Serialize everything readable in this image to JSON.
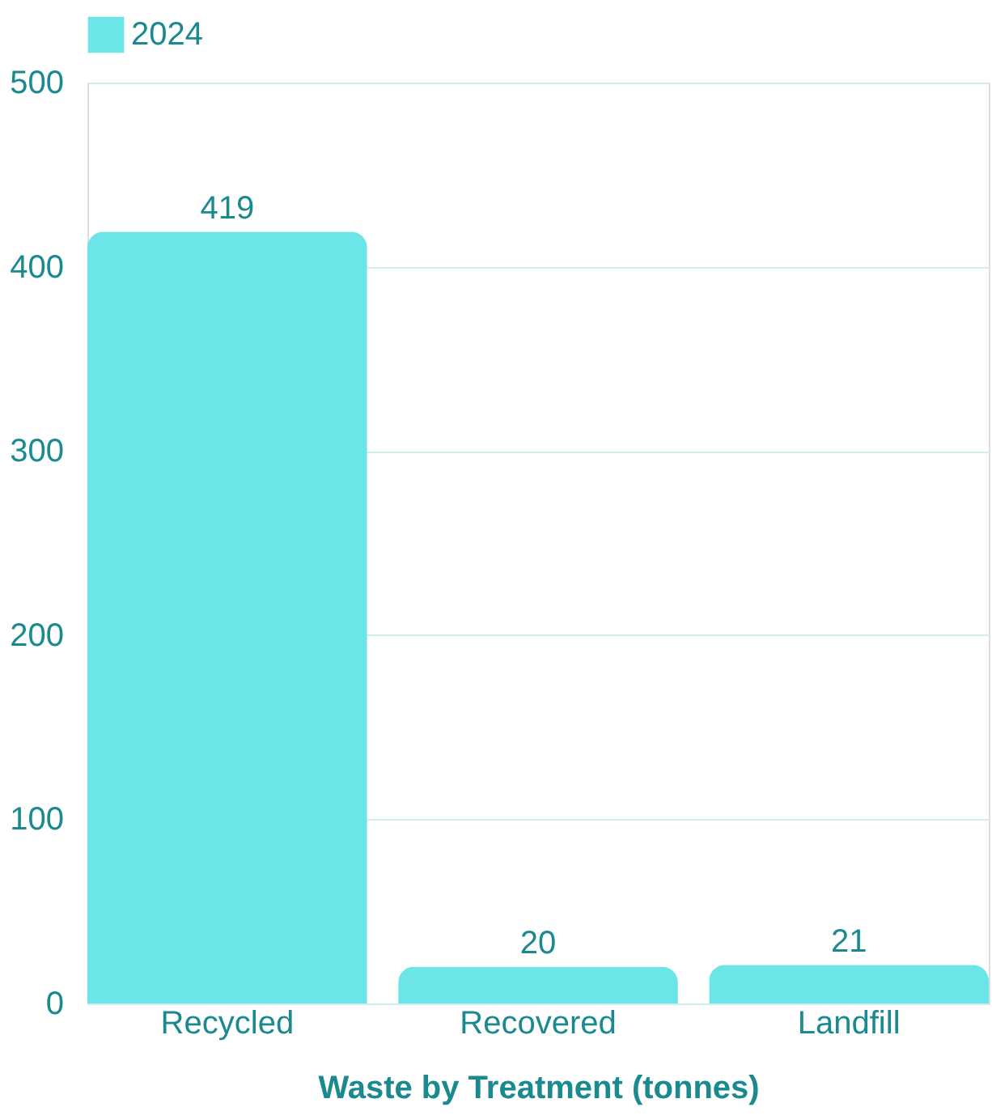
{
  "chart_data": {
    "type": "bar",
    "xlabel": "Waste by Treatment (tonnes)",
    "categories": [
      "Recycled",
      "Recovered",
      "Landfill"
    ],
    "series": [
      {
        "name": "2024",
        "color": "#6ce5e8",
        "values": [
          419,
          20,
          21
        ]
      }
    ],
    "ylim": [
      0,
      500
    ],
    "yticks": [
      0,
      100,
      200,
      300,
      400,
      500
    ],
    "grid": "y",
    "legend": "top",
    "data_labels": true
  }
}
